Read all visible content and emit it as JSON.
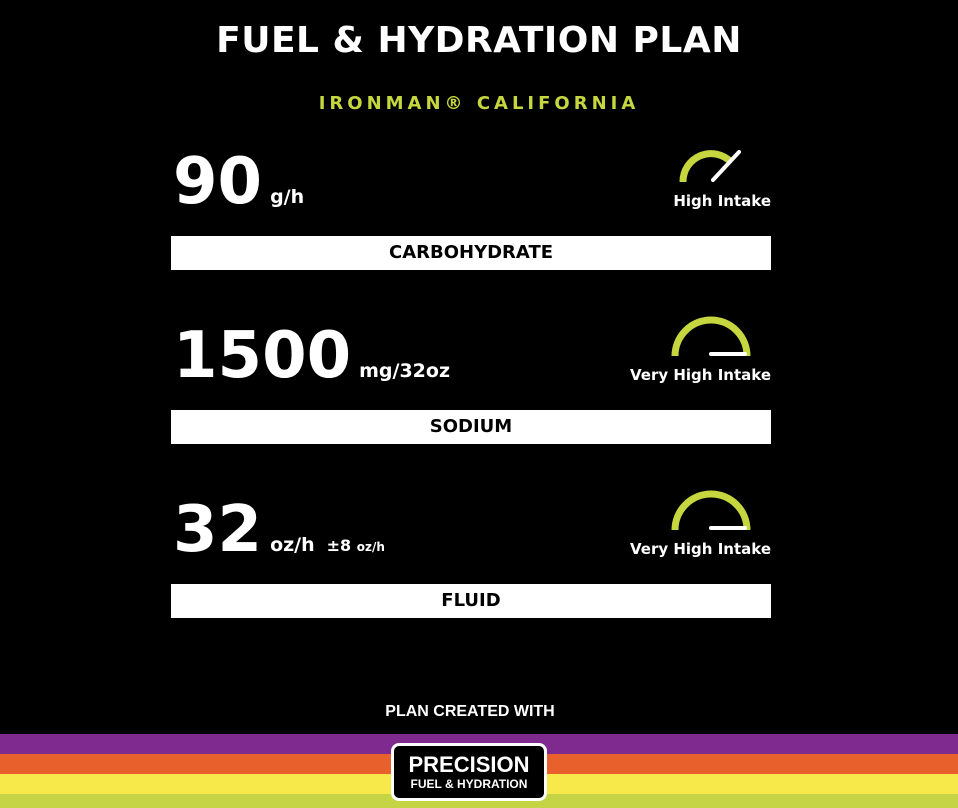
{
  "header": {
    "title": "FUEL & HYDRATION PLAN",
    "event": "IRONMAN® CALIFORNIA"
  },
  "metrics": [
    {
      "value": "90",
      "unit": "g/h",
      "label": "CARBOHYDRATE",
      "intake": "High Intake",
      "gauge_level": "high"
    },
    {
      "value": "1500",
      "unit": "mg/32oz",
      "label": "SODIUM",
      "intake": "Very High Intake",
      "gauge_level": "very-high"
    },
    {
      "value": "32",
      "unit": "oz/h",
      "range": "±8",
      "range_unit": "oz/h",
      "label": "FLUID",
      "intake": "Very High Intake",
      "gauge_level": "very-high"
    }
  ],
  "footer": {
    "created_with": "PLAN CREATED WITH",
    "logo_line1": "PRECISION",
    "logo_line2": "FUEL & HYDRATION"
  },
  "colors": {
    "accent": "#c6d63e",
    "stripes": [
      "#7e2a8e",
      "#e8602c",
      "#f7e94a",
      "#c5d444"
    ]
  }
}
